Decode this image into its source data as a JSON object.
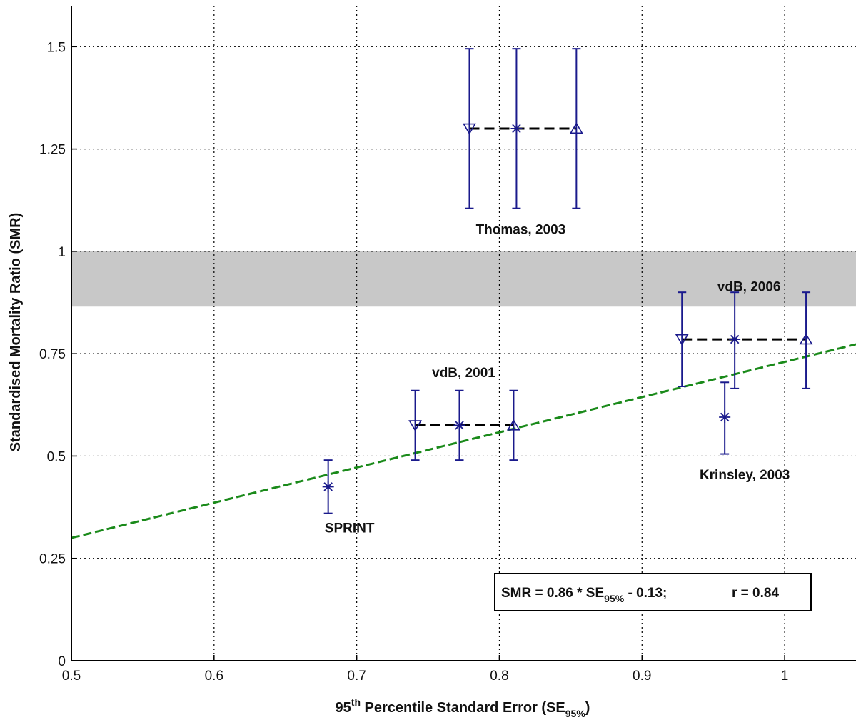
{
  "chart_data": {
    "type": "scatter",
    "title": "",
    "xlabel": {
      "main": "95",
      "sup": "th",
      "rest": " Percentile Standard Error (SE",
      "sub": "95%",
      "close": ")"
    },
    "ylabel": "Standardised Mortality Ratio (SMR)",
    "xlim": [
      0.5,
      1.05
    ],
    "ylim": [
      0,
      1.6
    ],
    "xticks": [
      0.5,
      0.6,
      0.7,
      0.8,
      0.9,
      1.0
    ],
    "xtick_labels": [
      "0.5",
      "0.6",
      "0.7",
      "0.8",
      "0.9",
      "1"
    ],
    "yticks": [
      0,
      0.25,
      0.5,
      0.75,
      1.0,
      1.25,
      1.5
    ],
    "ytick_labels": [
      "0",
      "0.25",
      "0.5",
      "0.75",
      "1",
      "1.25",
      "1.5"
    ],
    "grid": true,
    "shaded_band": {
      "y_low": 0.865,
      "y_high": 1.0,
      "color": "#c8c8c8"
    },
    "fit_line": {
      "slope": 0.86,
      "intercept": -0.13,
      "color": "#1a8a1a",
      "style": "dashed"
    },
    "equation": {
      "prefix": "SMR = 0.86 * SE",
      "sub": "95%",
      "suffix": " - 0.13;",
      "r": "r = 0.84"
    },
    "marker_color": "#1a1a8c",
    "groups": [
      {
        "label": "SPRINT",
        "points": [
          {
            "x": 0.68,
            "y": 0.425,
            "lo": 0.36,
            "hi": 0.49,
            "marker": "star"
          }
        ],
        "connector": false,
        "label_pos": [
          0.695,
          0.325
        ]
      },
      {
        "label": "vdB, 2001",
        "points": [
          {
            "x": 0.741,
            "y": 0.575,
            "lo": 0.49,
            "hi": 0.66,
            "marker": "tri-down"
          },
          {
            "x": 0.772,
            "y": 0.575,
            "lo": 0.49,
            "hi": 0.66,
            "marker": "star"
          },
          {
            "x": 0.81,
            "y": 0.575,
            "lo": 0.49,
            "hi": 0.66,
            "marker": "tri-up"
          }
        ],
        "connector": true,
        "label_pos": [
          0.775,
          0.705
        ]
      },
      {
        "label": "Thomas, 2003",
        "points": [
          {
            "x": 0.779,
            "y": 1.3,
            "lo": 1.105,
            "hi": 1.495,
            "marker": "tri-down"
          },
          {
            "x": 0.812,
            "y": 1.3,
            "lo": 1.105,
            "hi": 1.495,
            "marker": "star"
          },
          {
            "x": 0.854,
            "y": 1.3,
            "lo": 1.105,
            "hi": 1.495,
            "marker": "tri-up"
          }
        ],
        "connector": true,
        "label_pos": [
          0.815,
          1.055
        ]
      },
      {
        "label": "vdB, 2006",
        "points": [
          {
            "x": 0.928,
            "y": 0.785,
            "lo": 0.67,
            "hi": 0.9,
            "marker": "tri-down"
          },
          {
            "x": 0.965,
            "y": 0.785,
            "lo": 0.665,
            "hi": 0.9,
            "marker": "star"
          },
          {
            "x": 1.015,
            "y": 0.785,
            "lo": 0.665,
            "hi": 0.9,
            "marker": "tri-up"
          }
        ],
        "connector": true,
        "label_pos": [
          0.975,
          0.915
        ]
      },
      {
        "label": "Krinsley, 2003",
        "points": [
          {
            "x": 0.958,
            "y": 0.595,
            "lo": 0.505,
            "hi": 0.68,
            "marker": "star"
          }
        ],
        "connector": false,
        "label_pos": [
          0.972,
          0.455
        ]
      }
    ]
  }
}
